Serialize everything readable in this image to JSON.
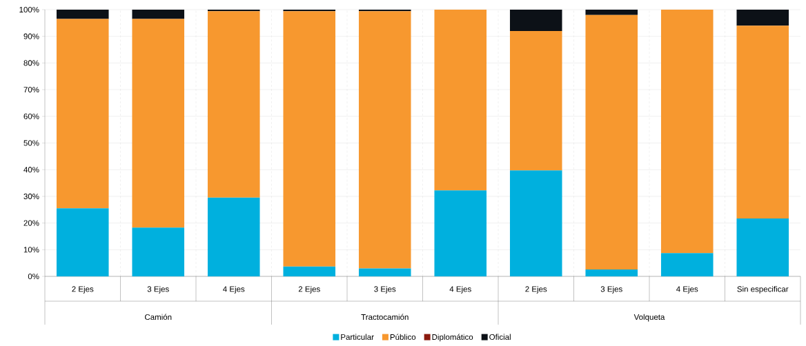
{
  "chart_data": {
    "type": "bar",
    "stacked": true,
    "categories": [
      "2 Ejes",
      "3 Ejes",
      "4 Ejes",
      "2 Ejes",
      "3 Ejes",
      "4 Ejes",
      "2 Ejes",
      "3 Ejes",
      "4 Ejes",
      "Sin especificar"
    ],
    "series": [
      {
        "name": "Particular",
        "color": "#00b0de",
        "values": [
          25.5,
          18.3,
          29.5,
          3.7,
          3.0,
          32.2,
          39.7,
          2.6,
          8.7,
          21.7
        ]
      },
      {
        "name": "Público",
        "color": "#f7982f",
        "values": [
          71.0,
          78.2,
          69.9,
          95.7,
          96.4,
          67.8,
          52.3,
          95.4,
          91.3,
          72.3
        ]
      },
      {
        "name": "Diplomático",
        "color": "#8b1a0e",
        "values": [
          0,
          0,
          0,
          0,
          0,
          0,
          0,
          0,
          0,
          0
        ]
      },
      {
        "name": "Oficial",
        "color": "#0c1117",
        "values": [
          3.5,
          3.5,
          0.6,
          0.6,
          0.6,
          0,
          8.0,
          2.0,
          0,
          6.0
        ]
      }
    ],
    "ylim": [
      0,
      100
    ],
    "yticks": [
      {
        "value": 0,
        "label": "0%"
      },
      {
        "value": 10,
        "label": "10%"
      },
      {
        "value": 20,
        "label": "20%"
      },
      {
        "value": 30,
        "label": "30%"
      },
      {
        "value": 40,
        "label": "40%"
      },
      {
        "value": 50,
        "label": "50%"
      },
      {
        "value": 60,
        "label": "60%"
      },
      {
        "value": 70,
        "label": "70%"
      },
      {
        "value": 80,
        "label": "80%"
      },
      {
        "value": 90,
        "label": "90%"
      },
      {
        "value": 100,
        "label": "100%"
      }
    ],
    "annotations": [
      "Camión",
      "Tractocamión",
      "Volqueta"
    ],
    "grid": true,
    "legend": "bottom"
  }
}
